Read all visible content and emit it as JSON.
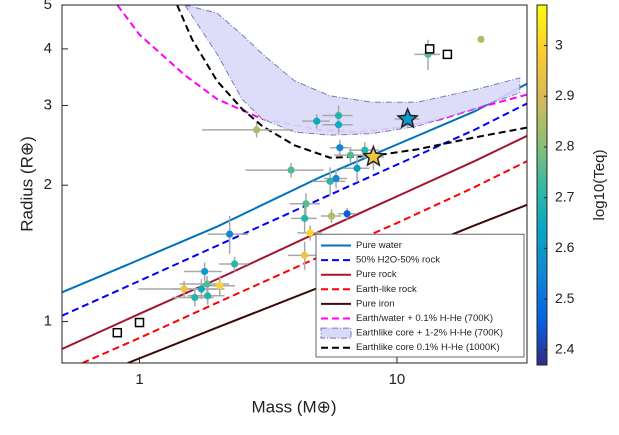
{
  "chart_data": {
    "type": "scatter",
    "xlabel": "Mass (M⊕)",
    "ylabel": "Radius (R⊕)",
    "xscale": "log",
    "yscale": "log",
    "xlim": [
      0.5,
      32
    ],
    "ylim": [
      0.81,
      5
    ],
    "xticks": [
      1,
      10
    ],
    "yticks": [
      1,
      2,
      3,
      4,
      5
    ],
    "colorbar": {
      "label": "log10(Teq)",
      "lim": [
        2.37,
        3.08
      ],
      "ticks": [
        2.4,
        2.5,
        2.6,
        2.7,
        2.8,
        2.9,
        3
      ],
      "colormap": "parula"
    },
    "legend": "lower right",
    "models": [
      {
        "name": "Pure water",
        "color": "#0072bd",
        "style": "solid",
        "x": [
          0.5,
          1,
          2,
          5,
          10,
          20,
          32
        ],
        "y": [
          1.16,
          1.37,
          1.62,
          2.08,
          2.46,
          2.91,
          3.35
        ]
      },
      {
        "name": "50% H2O-50% rock",
        "color": "#0000ff",
        "style": "dashed",
        "x": [
          0.5,
          1,
          2,
          5,
          10,
          20,
          32
        ],
        "y": [
          1.03,
          1.23,
          1.47,
          1.86,
          2.22,
          2.65,
          3.03
        ]
      },
      {
        "name": "Pure rock",
        "color": "#a2142f",
        "style": "solid",
        "x": [
          0.5,
          1,
          2,
          5,
          10,
          20,
          32
        ],
        "y": [
          0.87,
          1.04,
          1.24,
          1.58,
          1.89,
          2.26,
          2.57
        ]
      },
      {
        "name": "Earth-like rock",
        "color": "#ff0000",
        "style": "dashed",
        "x": [
          0.6,
          1,
          2,
          5,
          10,
          20,
          32
        ],
        "y": [
          0.81,
          0.92,
          1.1,
          1.39,
          1.65,
          1.98,
          2.26
        ]
      },
      {
        "name": "Pure iron",
        "color": "#3d0808",
        "style": "solid",
        "x": [
          0.9,
          2,
          5,
          10,
          20,
          32
        ],
        "y": [
          0.81,
          0.97,
          1.19,
          1.39,
          1.63,
          1.81
        ]
      },
      {
        "name": "Earth/water + 0.1% H-He (700K)",
        "color": "#ff00ff",
        "style": "dashed",
        "x": [
          0.82,
          1,
          1.5,
          2,
          3,
          5,
          7,
          10,
          15,
          20,
          32
        ],
        "y": [
          5,
          4.3,
          3.5,
          3.1,
          2.8,
          2.65,
          2.62,
          2.68,
          2.8,
          2.95,
          3.17
        ]
      },
      {
        "name": "Earthlike core + 1-2% H-He (700K)",
        "color": "#d9d9f8",
        "style": "band",
        "x": [
          1.5,
          2,
          2.5,
          3,
          4,
          5.5,
          8,
          12,
          20,
          30
        ],
        "y_low": [
          5,
          3.9,
          3.1,
          2.8,
          2.62,
          2.58,
          2.6,
          2.7,
          2.95,
          3.2
        ],
        "y_high": [
          5,
          4.8,
          4.3,
          3.9,
          3.4,
          3.15,
          3.05,
          3.05,
          3.25,
          3.45
        ]
      },
      {
        "name": "Earthlike core 0.1% H-He (1000K)",
        "color": "#000000",
        "style": "dashed",
        "x": [
          1.4,
          1.6,
          2,
          2.5,
          3,
          4,
          5.5,
          8,
          12,
          20,
          32
        ],
        "y": [
          5,
          4.2,
          3.4,
          2.95,
          2.7,
          2.45,
          2.3,
          2.32,
          2.4,
          2.55,
          2.68
        ]
      }
    ],
    "planets": {
      "x": [
        13.2,
        21.2,
        4.88,
        5.93,
        5.93,
        2.85,
        6.0,
        6.6,
        7.5,
        3.88,
        5.5,
        5.8,
        7.0,
        4.43,
        4.38,
        5.57,
        6.4,
        4.6,
        4.38,
        2.24,
        2.34,
        1.79,
        1.83,
        1.49,
        1.74,
        2.05,
        1.64,
        1.84
      ],
      "y": [
        3.89,
        4.2,
        2.77,
        2.85,
        2.72,
        2.65,
        2.42,
        2.33,
        2.39,
        2.16,
        2.04,
        2.07,
        2.18,
        1.82,
        1.69,
        1.71,
        1.73,
        1.57,
        1.4,
        1.56,
        1.34,
        1.29,
        1.21,
        1.18,
        1.18,
        1.2,
        1.13,
        1.14
      ],
      "xerr": [
        1.5,
        0.6,
        0.6,
        0.8,
        0.8,
        1.1,
        0.5,
        0.9,
        1.0,
        1.3,
        0.8,
        0.6,
        0.8,
        0.6,
        0.5,
        0.5,
        0.5,
        0.5,
        0.6,
        0.4,
        0.3,
        0.3,
        0.4,
        0.5,
        0.4,
        0.3,
        0.3,
        0.3
      ],
      "yerr": [
        0.3,
        0.05,
        0.1,
        0.15,
        0.12,
        0.1,
        0.1,
        0.1,
        0.1,
        0.08,
        0.15,
        0.1,
        0.15,
        0.1,
        0.12,
        0.06,
        0.05,
        0.06,
        0.1,
        0.15,
        0.05,
        0.06,
        0.05,
        0.05,
        0.06,
        0.06,
        0.05,
        0.05
      ],
      "teq": [
        2.75,
        2.85,
        2.65,
        2.7,
        2.65,
        2.85,
        2.55,
        2.75,
        2.7,
        2.75,
        2.7,
        2.55,
        2.6,
        2.75,
        2.7,
        2.85,
        2.45,
        3.0,
        2.95,
        2.55,
        2.7,
        2.6,
        2.75,
        2.95,
        2.65,
        3.0,
        2.7,
        2.7
      ]
    },
    "highlighted": {
      "x": [
        11.0,
        8.1
      ],
      "y": [
        2.8,
        2.31
      ],
      "xerr": [
        1.2,
        0.8
      ],
      "yerr": [
        0.12,
        0.15
      ],
      "teq": [
        2.6,
        2.95
      ]
    },
    "solar_system": {
      "x": [
        0.82,
        1.0,
        13.4,
        15.7
      ],
      "y": [
        0.945,
        0.995,
        4.0,
        3.89
      ]
    }
  }
}
